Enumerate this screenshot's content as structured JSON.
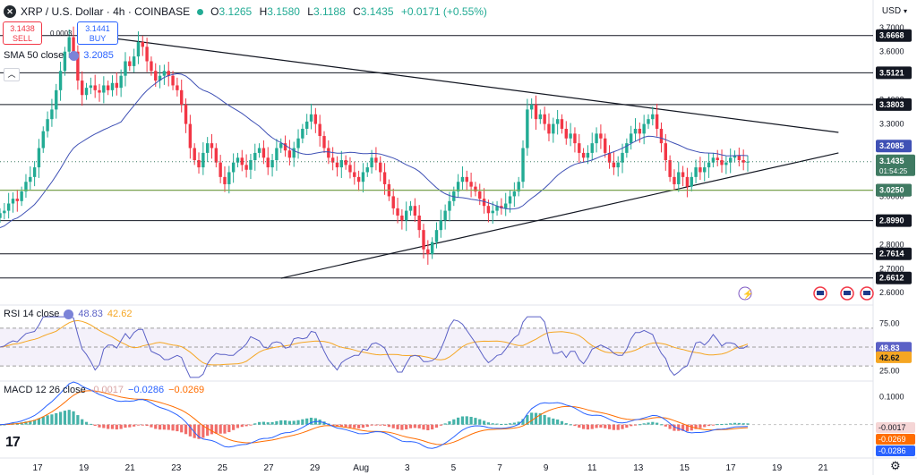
{
  "header": {
    "symbol_logo": "✕",
    "title": "XRP / U.S. Dollar · 4h · COINBASE",
    "open_label": "O",
    "open": "3.1265",
    "high_label": "H",
    "high": "3.1580",
    "low_label": "L",
    "low": "3.1188",
    "close_label": "C",
    "close": "3.1435",
    "change": "+0.0171 (+0.55%)"
  },
  "trade": {
    "sell_price": "3.1438",
    "sell_label": "SELL",
    "buy_price": "3.1441",
    "buy_label": "BUY",
    "spread": "0.0003"
  },
  "currency": "USD",
  "colors": {
    "up": "#22ab94",
    "down": "#f23645",
    "sma": "#3f51b5",
    "rsi": "#5b61c6",
    "rsi_ma": "#f5a623",
    "macd": "#2962ff",
    "signal": "#ff6d00",
    "hist_up": "#26a69a",
    "hist_down": "#ef5350",
    "level_tag": "#131722",
    "price_tag": "#3f7a62"
  },
  "icons": {
    "settings": "gear-icon",
    "collapse": "chevron-up-icon",
    "lightning": "lightning-icon",
    "events": "us-flag-icon",
    "brand": "tradingview-logo"
  },
  "chart_data": [
    {
      "type": "candlestick",
      "title": "XRP / U.S. Dollar · 4h · COINBASE",
      "x_ticks": [
        "17",
        "19",
        "21",
        "23",
        "25",
        "27",
        "29",
        "Aug",
        "3",
        "5",
        "7",
        "9",
        "11",
        "13",
        "15",
        "17",
        "19",
        "21"
      ],
      "y_ticks": [
        "2.6000",
        "2.7000",
        "2.8000",
        "2.9000",
        "3.0000",
        "3.1000",
        "3.2000",
        "3.3000",
        "3.4000",
        "3.5000",
        "3.6000",
        "3.7000"
      ],
      "ylim": [
        2.56,
        3.74
      ],
      "candle_count": 174,
      "closes": [
        2.93,
        2.94,
        2.97,
        2.99,
        2.98,
        3.02,
        3.06,
        3.08,
        3.12,
        3.2,
        3.27,
        3.32,
        3.36,
        3.44,
        3.52,
        3.6,
        3.66,
        3.6,
        3.48,
        3.42,
        3.45,
        3.46,
        3.44,
        3.43,
        3.46,
        3.44,
        3.47,
        3.45,
        3.5,
        3.56,
        3.54,
        3.58,
        3.64,
        3.62,
        3.56,
        3.52,
        3.48,
        3.5,
        3.52,
        3.5,
        3.46,
        3.44,
        3.38,
        3.3,
        3.2,
        3.15,
        3.12,
        3.18,
        3.22,
        3.2,
        3.14,
        3.08,
        3.05,
        3.1,
        3.14,
        3.16,
        3.13,
        3.11,
        3.15,
        3.18,
        3.2,
        3.16,
        3.12,
        3.15,
        3.2,
        3.22,
        3.19,
        3.16,
        3.2,
        3.24,
        3.28,
        3.31,
        3.34,
        3.3,
        3.25,
        3.2,
        3.16,
        3.14,
        3.12,
        3.15,
        3.13,
        3.1,
        3.08,
        3.06,
        3.1,
        3.12,
        3.16,
        3.14,
        3.1,
        3.05,
        3.0,
        2.95,
        2.92,
        2.9,
        2.94,
        2.96,
        2.92,
        2.86,
        2.78,
        2.76,
        2.81,
        2.86,
        2.9,
        2.94,
        2.98,
        3.02,
        3.06,
        3.08,
        3.06,
        3.04,
        3.02,
        2.99,
        2.96,
        2.93,
        2.94,
        2.96,
        2.95,
        2.97,
        3.0,
        3.02,
        3.06,
        3.2,
        3.36,
        3.38,
        3.32,
        3.34,
        3.3,
        3.26,
        3.3,
        3.32,
        3.28,
        3.24,
        3.26,
        3.22,
        3.18,
        3.16,
        3.18,
        3.22,
        3.26,
        3.24,
        3.18,
        3.14,
        3.12,
        3.14,
        3.18,
        3.22,
        3.26,
        3.28,
        3.26,
        3.3,
        3.32,
        3.34,
        3.28,
        3.22,
        3.15,
        3.08,
        3.05,
        3.1,
        3.08,
        3.04,
        3.08,
        3.12,
        3.1,
        3.12,
        3.14,
        3.16,
        3.15,
        3.13,
        3.14,
        3.16,
        3.17,
        3.15,
        3.14,
        3.1435
      ],
      "sma_50": {
        "name": "SMA 50 close",
        "value": "3.2085"
      },
      "horizontal_levels": [
        "3.6668",
        "3.5121",
        "3.3803",
        "3.0250",
        "2.8990",
        "2.7614",
        "2.6612"
      ],
      "current_price": "3.1435",
      "countdown": "01:54:25",
      "trendlines": [
        {
          "from": [
            "Jul 20",
            3.665
          ],
          "to": [
            "Aug 22",
            3.265
          ]
        },
        {
          "from": [
            "Jul 28",
            2.66
          ],
          "to": [
            "Aug 22",
            3.18
          ]
        }
      ]
    },
    {
      "type": "line",
      "title": "RSI 14 close",
      "series": [
        {
          "name": "RSI",
          "value": "48.83"
        },
        {
          "name": "RSI MA",
          "value": "42.62"
        }
      ],
      "y_ticks": [
        "75.00",
        "25.00"
      ],
      "ylim": [
        16,
        84
      ],
      "band": [
        30,
        70
      ]
    },
    {
      "type": "bar",
      "title": "MACD 12 26 close",
      "series": [
        {
          "name": "Histogram",
          "value": "-0.0017"
        },
        {
          "name": "MACD",
          "value": "−0.0286"
        },
        {
          "name": "Signal",
          "value": "−0.0269"
        }
      ],
      "y_ticks": [
        "0.1000"
      ],
      "value_tags": [
        "-0.0017",
        "-0.0269",
        "-0.0286"
      ],
      "ylim": [
        -0.12,
        0.15
      ]
    }
  ],
  "legends": {
    "sma_label": "SMA 50 close",
    "sma_value": "3.2085",
    "rsi_label": "RSI 14 close",
    "rsi_value": "48.83",
    "rsi_ma_value": "42.62",
    "macd_label": "MACD 12 26 close",
    "macd_hist_value": "-0.0017",
    "macd_value": "−0.0286",
    "signal_value": "−0.0269"
  }
}
